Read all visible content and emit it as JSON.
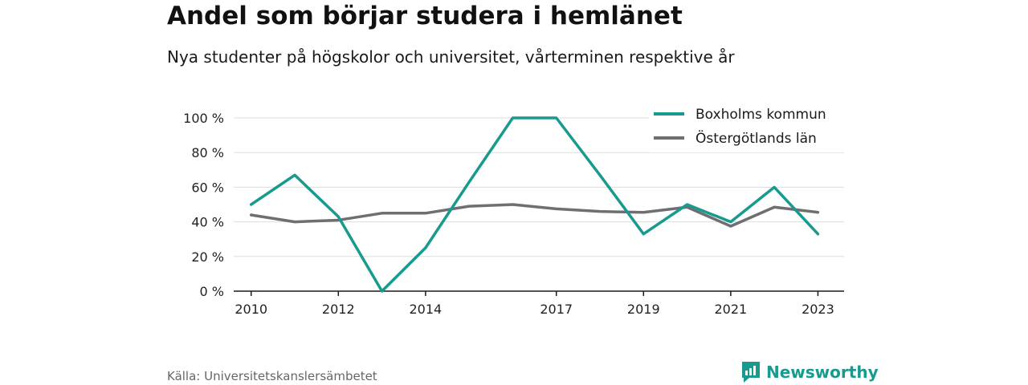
{
  "title": "Andel som börjar studera i hemlänet",
  "subtitle": "Nya studenter på högskolor och universitet, vårterminen respektive år",
  "source": "Källa: Universitetskanslersämbetet",
  "brand": {
    "name": "Newsworthy",
    "icon": "bar-chart-logo-icon"
  },
  "colors": {
    "accent": "#189a8f",
    "series2": "#6e6e73",
    "axis": "#1a1a1a",
    "grid": "#dddddd"
  },
  "chart_data": {
    "type": "line",
    "title": "Andel som börjar studera i hemlänet",
    "subtitle": "Nya studenter på högskolor och universitet, vårterminen respektive år",
    "xlabel": "",
    "ylabel": "",
    "x": [
      2010,
      2011,
      2012,
      2013,
      2014,
      2015,
      2016,
      2017,
      2018,
      2019,
      2020,
      2021,
      2022,
      2023
    ],
    "x_ticks": [
      2010,
      2012,
      2014,
      2017,
      2019,
      2021,
      2023
    ],
    "xlim": [
      2009.6,
      2023.6
    ],
    "ylim": [
      0,
      100
    ],
    "y_ticks": [
      0,
      20,
      40,
      60,
      80,
      100
    ],
    "y_tick_labels": [
      "0 %",
      "20 %",
      "40 %",
      "60 %",
      "80 %",
      "100 %"
    ],
    "grid": true,
    "legend_position": "top-right",
    "series": [
      {
        "name": "Boxholms kommun",
        "color": "#189a8f",
        "values": [
          50,
          67,
          43,
          0,
          25,
          63,
          100,
          100,
          67,
          33,
          50,
          40,
          60,
          33
        ]
      },
      {
        "name": "Östergötlands län",
        "color": "#6e6e73",
        "values": [
          44,
          40,
          41,
          45,
          45,
          49,
          50,
          47.5,
          46,
          45.5,
          48.5,
          37.5,
          48.5,
          45.5
        ]
      }
    ]
  }
}
